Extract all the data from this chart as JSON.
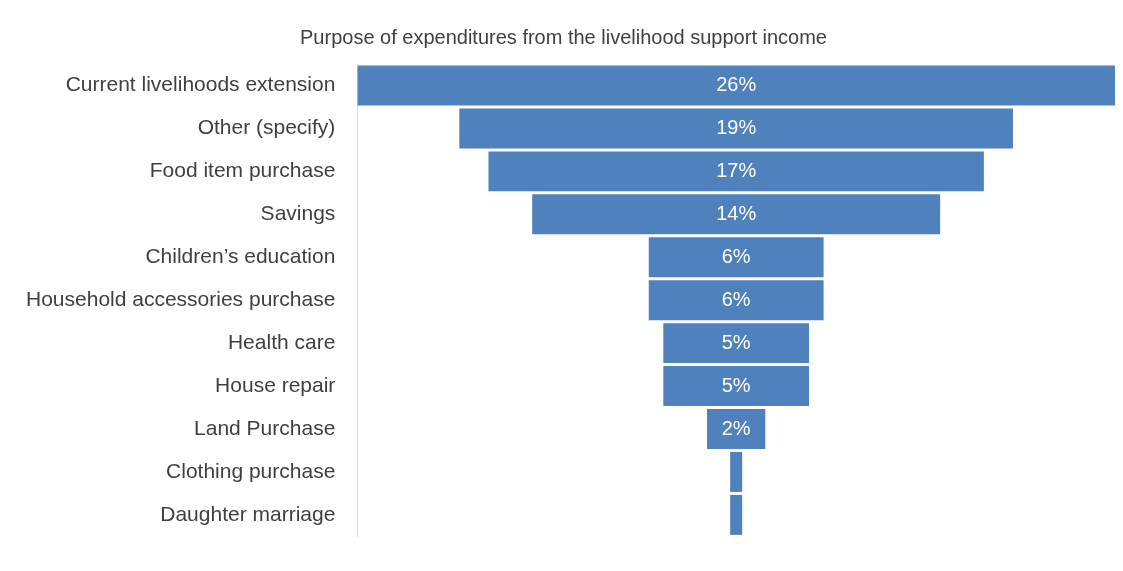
{
  "chart_data": {
    "type": "other",
    "title": "Purpose of expenditures from the livelihood support income",
    "categories": [
      "Current livelihoods extension",
      "Other (specify)",
      "Food item purchase",
      "Savings",
      "Children’s education",
      "Household accessories purchase",
      "Health care",
      "House repair",
      "Land Purchase",
      "Clothing purchase",
      "Daughter marriage"
    ],
    "values": [
      26,
      19,
      17,
      14,
      6,
      6,
      5,
      5,
      2,
      null,
      null
    ],
    "value_labels": [
      "26%",
      "19%",
      "17%",
      "14%",
      "6%",
      "6%",
      "5%",
      "5%",
      "2%",
      null,
      null
    ],
    "color": "#4f81bd"
  }
}
